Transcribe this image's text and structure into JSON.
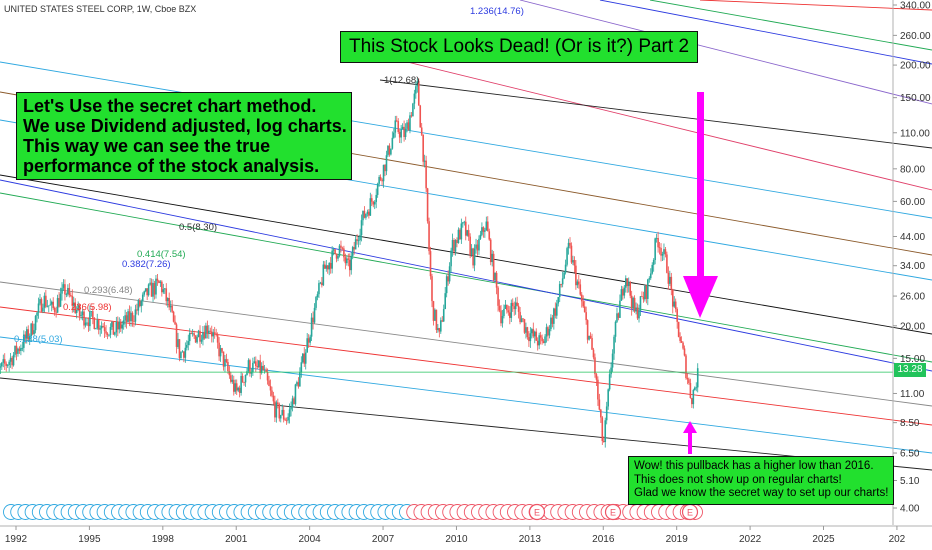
{
  "header": {
    "title": "UNITED STATES STEEL CORP, 1W, Cboe BZX"
  },
  "annotations": {
    "title_box": "This Stock Looks Dead! (Or is it?) Part 2",
    "method_lines": [
      "Let's Use the secret chart method.",
      "We use Dividend adjusted, log charts.",
      "This way we can see the true",
      "performance of the stock analysis."
    ],
    "wow_lines": [
      "Wow! this pullback has a higher low than 2016.",
      "This does not show up on regular charts!",
      "Glad we know the secret way to set up our charts!"
    ]
  },
  "price_tag": "13.28",
  "colors": {
    "candle_up": "#26a69a",
    "candle_down": "#ef5350",
    "annotation_bg": "#22e02e",
    "arrow": "#ff00ff",
    "price_tag": "#22c35b"
  },
  "chart_data": {
    "type": "candlestick",
    "title": "UNITED STATES STEEL CORP, 1W, Cboe BZX",
    "x_ticks": [
      "1992",
      "1995",
      "1998",
      "2001",
      "2004",
      "2007",
      "2010",
      "2013",
      "2016",
      "2019",
      "2022",
      "2025",
      "202"
    ],
    "y_ticks": [
      "340.00",
      "260.00",
      "200.00",
      "150.00",
      "110.00",
      "80.00",
      "60.00",
      "44.00",
      "34.00",
      "26.00",
      "20.00",
      "15.00",
      "11.00",
      "8.50",
      "6.50",
      "5.10",
      "4.00"
    ],
    "y_scale": "log",
    "last_price": 13.28,
    "price_path": [
      {
        "year": 1991.0,
        "price": 12.5
      },
      {
        "year": 1991.8,
        "price": 15.0
      },
      {
        "year": 1992.6,
        "price": 19.0
      },
      {
        "year": 1993.1,
        "price": 25.5
      },
      {
        "year": 1993.5,
        "price": 23.0
      },
      {
        "year": 1994.0,
        "price": 27.5
      },
      {
        "year": 1994.6,
        "price": 22.0
      },
      {
        "year": 1995.2,
        "price": 21.0
      },
      {
        "year": 1996.0,
        "price": 19.0
      },
      {
        "year": 1996.8,
        "price": 22.0
      },
      {
        "year": 1997.4,
        "price": 27.0
      },
      {
        "year": 1997.9,
        "price": 29.0
      },
      {
        "year": 1998.3,
        "price": 23.0
      },
      {
        "year": 1998.7,
        "price": 15.5
      },
      {
        "year": 1999.2,
        "price": 18.0
      },
      {
        "year": 1999.9,
        "price": 20.0
      },
      {
        "year": 2000.5,
        "price": 14.5
      },
      {
        "year": 2001.0,
        "price": 11.0
      },
      {
        "year": 2001.5,
        "price": 14.0
      },
      {
        "year": 2002.1,
        "price": 13.5
      },
      {
        "year": 2002.6,
        "price": 9.5
      },
      {
        "year": 2003.1,
        "price": 8.8
      },
      {
        "year": 2003.6,
        "price": 13.0
      },
      {
        "year": 2004.1,
        "price": 21.0
      },
      {
        "year": 2004.6,
        "price": 33.0
      },
      {
        "year": 2005.2,
        "price": 40.0
      },
      {
        "year": 2005.6,
        "price": 33.0
      },
      {
        "year": 2006.1,
        "price": 50.0
      },
      {
        "year": 2006.6,
        "price": 62.0
      },
      {
        "year": 2007.1,
        "price": 85.0
      },
      {
        "year": 2007.5,
        "price": 115.0
      },
      {
        "year": 2007.9,
        "price": 108.0
      },
      {
        "year": 2008.4,
        "price": 165.0
      },
      {
        "year": 2008.7,
        "price": 80.0
      },
      {
        "year": 2009.0,
        "price": 24.0
      },
      {
        "year": 2009.3,
        "price": 18.0
      },
      {
        "year": 2009.8,
        "price": 40.0
      },
      {
        "year": 2010.3,
        "price": 48.0
      },
      {
        "year": 2010.7,
        "price": 36.0
      },
      {
        "year": 2011.2,
        "price": 50.0
      },
      {
        "year": 2011.8,
        "price": 22.0
      },
      {
        "year": 2012.4,
        "price": 24.0
      },
      {
        "year": 2012.9,
        "price": 19.0
      },
      {
        "year": 2013.5,
        "price": 17.0
      },
      {
        "year": 2014.1,
        "price": 24.0
      },
      {
        "year": 2014.6,
        "price": 40.0
      },
      {
        "year": 2015.1,
        "price": 25.0
      },
      {
        "year": 2015.6,
        "price": 15.0
      },
      {
        "year": 2016.0,
        "price": 6.8
      },
      {
        "year": 2016.4,
        "price": 17.0
      },
      {
        "year": 2016.9,
        "price": 32.0
      },
      {
        "year": 2017.3,
        "price": 22.0
      },
      {
        "year": 2017.8,
        "price": 28.0
      },
      {
        "year": 2018.2,
        "price": 44.0
      },
      {
        "year": 2018.6,
        "price": 34.0
      },
      {
        "year": 2018.9,
        "price": 23.0
      },
      {
        "year": 2019.3,
        "price": 15.0
      },
      {
        "year": 2019.6,
        "price": 10.5
      },
      {
        "year": 2019.9,
        "price": 13.28
      }
    ],
    "fib_labels": [
      "1(12.68)",
      "0.5(8.30)",
      "0.414(7.54)",
      "0.382(7.26)",
      "0.293(6.48)",
      "0.236(5.98)",
      "0.128(5.03)",
      "1.236(14.76)"
    ]
  }
}
